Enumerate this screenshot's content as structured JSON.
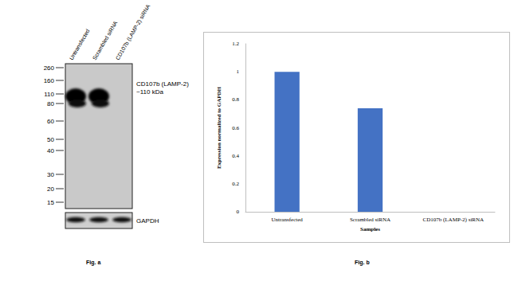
{
  "chart_data": {
    "type": "bar",
    "categories": [
      "Untransfected",
      "Scrambled siRNA",
      "CD107b (LAMP-2) siRNA"
    ],
    "values": [
      1,
      0.74,
      0
    ],
    "color": "#4472c4",
    "x_label": "Samples",
    "y_label": "Expression normalized to GAPDH",
    "ylim": [
      0,
      1.2
    ],
    "yticks": [
      0,
      0.2,
      0.4,
      0.6,
      0.8,
      1,
      1.2
    ],
    "grid": false,
    "annotations": [
      "Fig. b"
    ]
  },
  "blot": {
    "lanes": [
      "Untransfected",
      "Scrambled siRNA",
      "CD107b (LAMP-2) siRNA"
    ],
    "markers": [
      260,
      160,
      110,
      80,
      60,
      50,
      40,
      30,
      20,
      15
    ],
    "band_label": [
      "CD107b (LAMP-2)",
      "~110 kDa"
    ],
    "loading_control": "GAPDH",
    "caption": "Fig. a"
  }
}
